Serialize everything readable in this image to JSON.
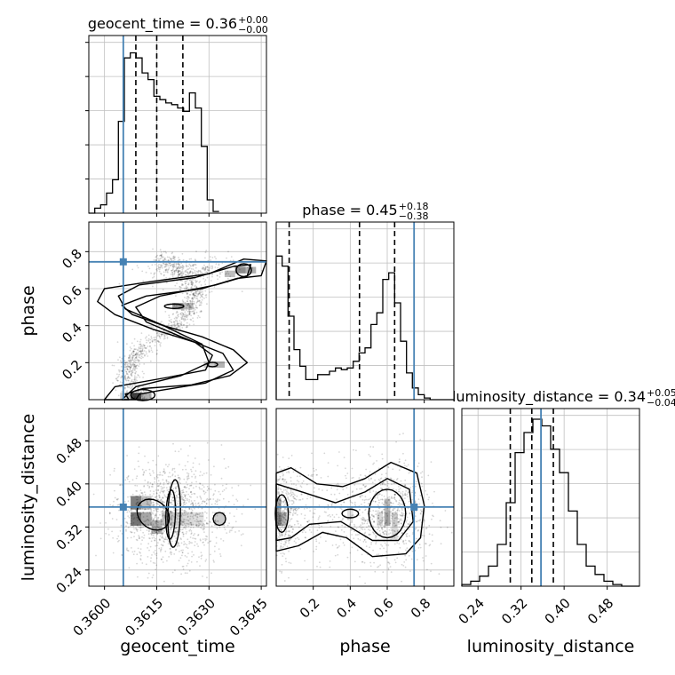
{
  "chart_data": {
    "type": "corner",
    "colors": {
      "truth": "#4682b4",
      "hist": "#000000",
      "grid": "#c0c0c0",
      "points": "#000000"
    },
    "params": [
      "geocent_time",
      "phase",
      "luminosity_distance"
    ],
    "truths": {
      "geocent_time": 0.36054,
      "phase": 0.745,
      "luminosity_distance": 0.357
    },
    "ranges": {
      "geocent_time": [
        0.35955,
        0.36465
      ],
      "phase": [
        0.0,
        0.96
      ],
      "luminosity_distance": [
        0.21,
        0.54
      ]
    },
    "titles": [
      {
        "param": "geocent_time",
        "text": "geocent_time = 0.36",
        "plus": "+0.00",
        "minus": "−0.00"
      },
      {
        "param": "phase",
        "text": "phase = 0.45",
        "plus": "+0.18",
        "minus": "−0.38"
      },
      {
        "param": "luminosity_distance",
        "text": "luminosity_distance = 0.34",
        "plus": "+0.05",
        "minus": "−0.04"
      }
    ],
    "quantiles": {
      "geocent_time": [
        0.3609,
        0.3615,
        0.36225
      ],
      "phase": [
        0.07,
        0.45,
        0.64
      ],
      "luminosity_distance": [
        0.3,
        0.34,
        0.38
      ]
    },
    "ticks": {
      "geocent_time": {
        "values": [
          0.36,
          0.3615,
          0.363,
          0.3645
        ],
        "labels": [
          "0.3600",
          "0.3615",
          "0.3630",
          "0.3645"
        ]
      },
      "phase": {
        "values": [
          0.2,
          0.4,
          0.6,
          0.8
        ],
        "labels": [
          "0.2",
          "0.4",
          "0.6",
          "0.8"
        ]
      },
      "luminosity_distance": {
        "values": [
          0.24,
          0.32,
          0.4,
          0.48
        ],
        "labels": [
          "0.24",
          "0.32",
          "0.40",
          "0.48"
        ]
      }
    },
    "axis_labels": {
      "x": [
        "geocent_time",
        "phase",
        "luminosity_distance"
      ],
      "y": [
        "phase",
        "luminosity_distance"
      ]
    },
    "histograms": {
      "geocent_time": {
        "start": 0.35955,
        "bin_width": 0.00017,
        "counts": [
          0,
          0.03,
          0.05,
          0.12,
          0.2,
          0.55,
          0.93,
          0.96,
          0.93,
          0.84,
          0.8,
          0.7,
          0.68,
          0.66,
          0.65,
          0.63,
          0.61,
          0.72,
          0.63,
          0.4,
          0.08,
          0.01
        ]
      },
      "phase": {
        "start": 0.0,
        "bin_width": 0.032,
        "counts": [
          0.86,
          0.8,
          0.5,
          0.3,
          0.2,
          0.12,
          0.12,
          0.15,
          0.15,
          0.17,
          0.19,
          0.18,
          0.19,
          0.23,
          0.28,
          0.31,
          0.45,
          0.52,
          0.72,
          0.76,
          0.58,
          0.35,
          0.16,
          0.07,
          0.03,
          0.01,
          0.0,
          0.0,
          0.0,
          0.0
        ]
      },
      "luminosity_distance": {
        "start": 0.21,
        "bin_width": 0.0165,
        "counts": [
          0.01,
          0.03,
          0.06,
          0.12,
          0.25,
          0.5,
          0.8,
          0.92,
          1.0,
          0.96,
          0.82,
          0.68,
          0.45,
          0.25,
          0.12,
          0.07,
          0.03,
          0.01,
          0.0,
          0.0
        ]
      }
    }
  }
}
